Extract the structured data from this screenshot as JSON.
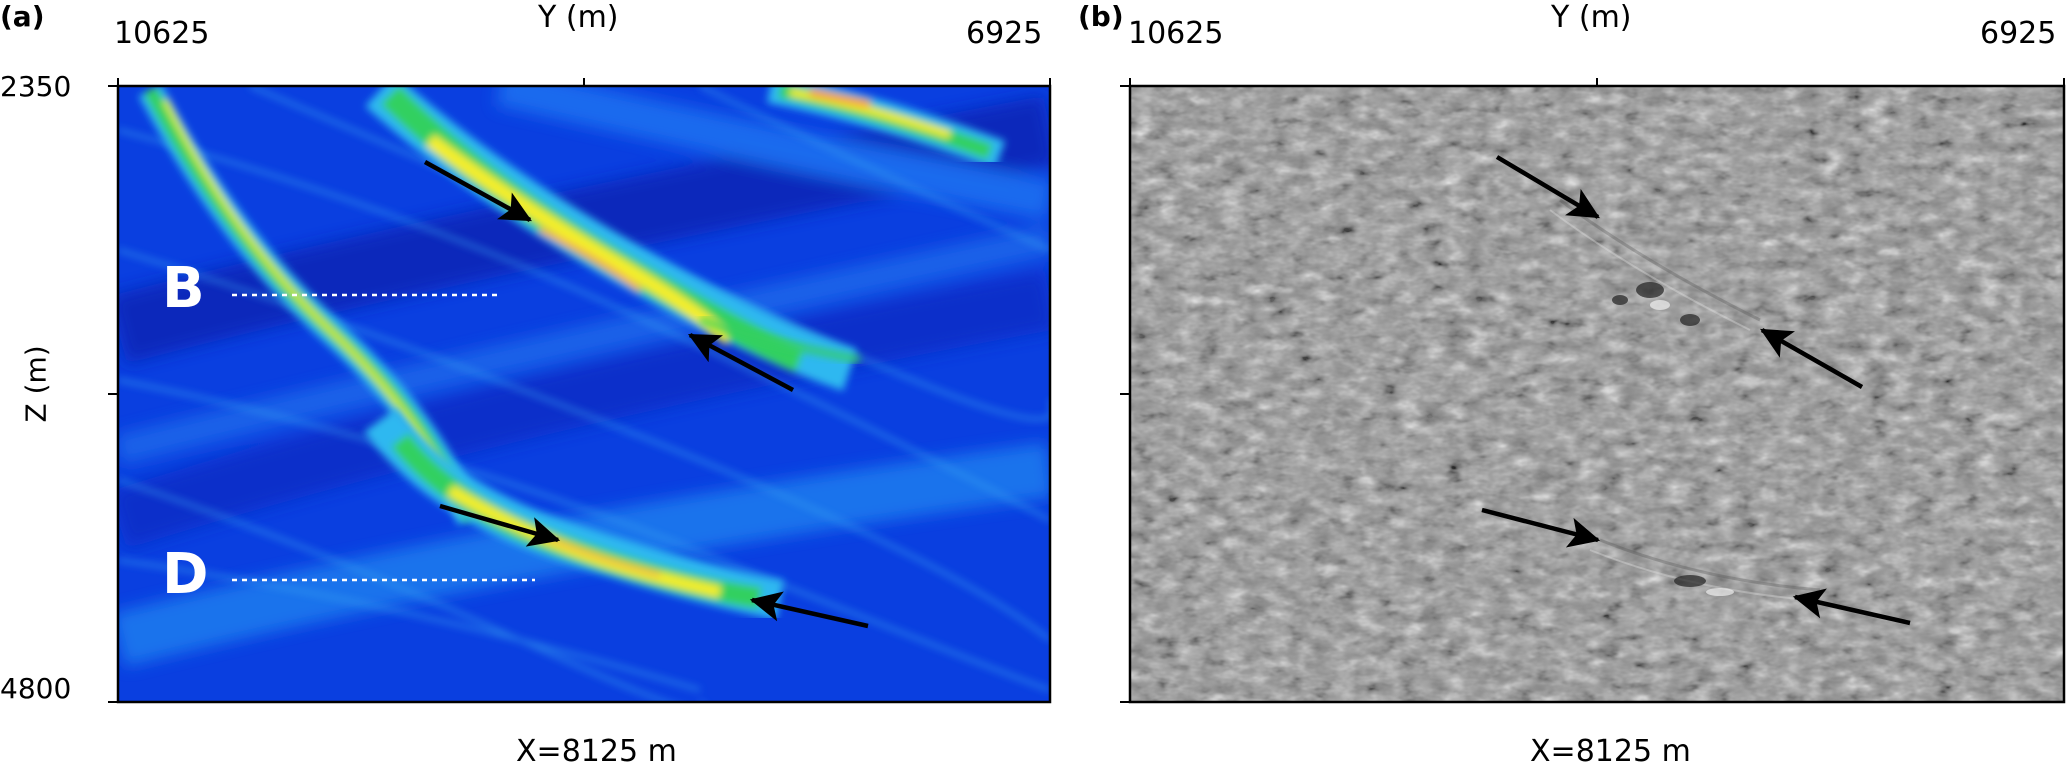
{
  "panels": [
    {
      "letter": "(a)",
      "y_axis_title": "Y (m)",
      "y_ticks": [
        "10625",
        "6925"
      ],
      "z_axis_title": "Z (m)",
      "z_ticks": [
        "2350",
        "4800"
      ],
      "caption": "X=8125 m",
      "style": "colored-semblance",
      "markers": [
        "B",
        "D"
      ]
    },
    {
      "letter": "(b)",
      "y_axis_title": "Y (m)",
      "y_ticks": [
        "10625",
        "6925"
      ],
      "caption": "X=8125 m",
      "style": "grayscale-seismic"
    }
  ],
  "colors": {
    "background_blue": "#0a3fe0",
    "event_yellow": "#f4ee2a",
    "event_green": "#32d060",
    "event_cyan": "#2fb8f0",
    "seismic_gray": "#8a8a8a",
    "arrow": "#000000",
    "marker_text": "#ffffff"
  }
}
